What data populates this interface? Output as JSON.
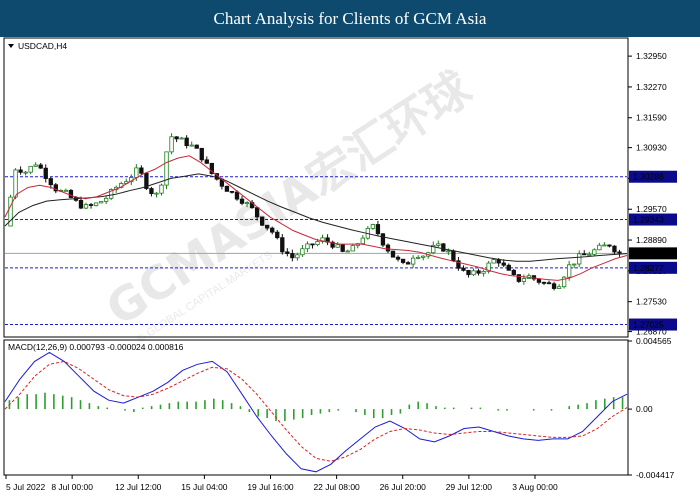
{
  "header": {
    "title": "Chart Analysis for Clients of GCM Asia"
  },
  "main_panel": {
    "symbol_label": "USDCAD,H4"
  },
  "macd_panel": {
    "label": "MACD(12,26,9) 0.000793 -0.000024 0.000816"
  },
  "watermark": {
    "text": "GCMASIA宏汇环球",
    "sub": "© GLOBAL CAPITAL MARKETS"
  },
  "colors": {
    "header_bg": "#0d4a6e",
    "support_resistance": "#1a1adb",
    "ma_fast": "#c8283c",
    "ma_slow": "#222222",
    "macd_line": "#1a1adb",
    "signal_line": "#e02020",
    "histogram": "#2e9e2e",
    "price_tag": "#0a0a8a",
    "current_tag": "#000000"
  },
  "chart_data": [
    {
      "type": "candlestick",
      "title": "USDCAD,H4",
      "price_axis_ticks": [
        "1.32950",
        "1.32270",
        "1.31590",
        "1.30930",
        "1.30250",
        "1.29570",
        "1.28890",
        "1.28210",
        "1.27530",
        "1.26870"
      ],
      "time_axis_ticks": [
        "5 Jul 2022",
        "8 Jul 00:00",
        "12 Jul 12:00",
        "15 Jul 04:00",
        "19 Jul 16:00",
        "22 Jul 08:00",
        "26 Jul 20:00",
        "29 Jul 12:00",
        "3 Aug 00:00"
      ],
      "ylim": [
        1.2675,
        1.3335
      ],
      "levels": [
        {
          "label": "1.30288",
          "value": 1.30288,
          "style": "dashed"
        },
        {
          "label": "1.29343",
          "value": 1.29343,
          "style": "dashed"
        },
        {
          "label": "1.28277",
          "value": 1.28277,
          "style": "dashed"
        },
        {
          "label": "1.27025",
          "value": 1.27025,
          "style": "dashed"
        }
      ],
      "current_price": {
        "label": "1.28596",
        "value": 1.28596
      },
      "close_path": [
        1.292,
        1.305,
        1.304,
        1.306,
        1.303,
        1.3,
        1.299,
        1.297,
        1.296,
        1.297,
        1.2985,
        1.301,
        1.3025,
        1.3045,
        1.3,
        1.2985,
        1.312,
        1.311,
        1.31,
        1.308,
        1.304,
        1.3015,
        1.2995,
        1.298,
        1.296,
        1.293,
        1.291,
        1.287,
        1.285,
        1.2865,
        1.288,
        1.289,
        1.288,
        1.286,
        1.287,
        1.29,
        1.292,
        1.288,
        1.285,
        1.283,
        1.286,
        1.2855,
        1.2875,
        1.287,
        1.284,
        1.281,
        1.2815,
        1.283,
        1.285,
        1.282,
        1.28,
        1.281,
        1.28,
        1.279,
        1.279,
        1.283,
        1.285,
        1.286,
        1.287,
        1.288,
        1.286
      ],
      "series": [
        {
          "name": "Fast MA",
          "values": [
            1.294,
            1.299,
            1.3005,
            1.301,
            1.3005,
            1.2995,
            1.2985,
            1.298,
            1.2985,
            1.2995,
            1.3005,
            1.302,
            1.3035,
            1.3045,
            1.306,
            1.307,
            1.3075,
            1.306,
            1.304,
            1.302,
            1.3,
            1.298,
            1.296,
            1.294,
            1.2925,
            1.291,
            1.29,
            1.289,
            1.2885,
            1.288,
            1.288,
            1.288,
            1.2875,
            1.287,
            1.2868,
            1.2866,
            1.2862,
            1.2855,
            1.2848,
            1.2842,
            1.2836,
            1.283,
            1.2822,
            1.2815,
            1.281,
            1.2808,
            1.2805,
            1.2802,
            1.28,
            1.2805,
            1.2815,
            1.2828,
            1.2838,
            1.2848,
            1.2855
          ]
        },
        {
          "name": "Slow MA",
          "values": [
            1.292,
            1.295,
            1.2965,
            1.2975,
            1.2978,
            1.298,
            1.2982,
            1.2985,
            1.299,
            1.2998,
            1.3005,
            1.3015,
            1.3025,
            1.303,
            1.3035,
            1.303,
            1.302,
            1.3005,
            1.299,
            1.2975,
            1.2962,
            1.295,
            1.2938,
            1.2928,
            1.292,
            1.2912,
            1.2905,
            1.2898,
            1.2892,
            1.2886,
            1.288,
            1.2874,
            1.2868,
            1.2862,
            1.2856,
            1.285,
            1.2845,
            1.2842,
            1.2842,
            1.2845,
            1.2848,
            1.285,
            1.2852,
            1.2855,
            1.2857,
            1.2859
          ]
        }
      ]
    },
    {
      "type": "macd",
      "title": "MACD(12,26,9) 0.000793 -0.000024 0.000816",
      "axis_ticks": [
        "0.004565",
        "0.00",
        "-0.004417"
      ],
      "ylim": [
        -0.004417,
        0.004565
      ],
      "series": [
        {
          "name": "MACD",
          "values": [
            0.0005,
            0.002,
            0.0032,
            0.0038,
            0.0032,
            0.0022,
            0.0012,
            0.0006,
            0.0004,
            0.0008,
            0.0012,
            0.0018,
            0.0026,
            0.003,
            0.0032,
            0.0025,
            0.001,
            -0.0005,
            -0.0018,
            -0.003,
            -0.004,
            -0.0042,
            -0.0037,
            -0.0028,
            -0.002,
            -0.0012,
            -0.0008,
            -0.0013,
            -0.002,
            -0.0022,
            -0.0018,
            -0.0013,
            -0.0012,
            -0.0015,
            -0.0018,
            -0.002,
            -0.0021,
            -0.002,
            -0.002,
            -0.0015,
            -0.0005,
            0.0005,
            0.001
          ]
        },
        {
          "name": "Signal",
          "values": [
            0.0,
            0.001,
            0.0022,
            0.003,
            0.0032,
            0.0027,
            0.002,
            0.0013,
            0.0009,
            0.0008,
            0.001,
            0.0014,
            0.0019,
            0.0024,
            0.0028,
            0.0027,
            0.002,
            0.001,
            -0.0002,
            -0.0014,
            -0.0025,
            -0.0033,
            -0.0035,
            -0.0032,
            -0.0027,
            -0.002,
            -0.0015,
            -0.0013,
            -0.0014,
            -0.0016,
            -0.0017,
            -0.0016,
            -0.0015,
            -0.0015,
            -0.0016,
            -0.0017,
            -0.0018,
            -0.0019,
            -0.0019,
            -0.0018,
            -0.0013,
            -0.0005,
            0.0001
          ]
        }
      ],
      "histogram": [
        0.0006,
        0.0008,
        0.001,
        0.001,
        0.0011,
        0.001,
        0.0009,
        0.0008,
        0.0006,
        0.0004,
        0.0002,
        0.0001,
        0.0,
        -0.0001,
        -0.0002,
        0.0001,
        0.0002,
        0.0003,
        0.0004,
        0.0005,
        0.0005,
        0.0005,
        0.0006,
        0.0007,
        0.0006,
        0.0004,
        0.0002,
        -0.0002,
        -0.0005,
        -0.0006,
        -0.0008,
        -0.0008,
        -0.0007,
        -0.0006,
        -0.0004,
        -0.0003,
        -0.0002,
        -0.0001,
        0.0,
        -0.0002,
        -0.0004,
        -0.0006,
        -0.0006,
        -0.0004,
        -0.0003,
        0.0003,
        0.0005,
        0.0004,
        0.0002,
        0.0001,
        0.0001,
        0.0,
        0.0001,
        0.0001,
        0.0,
        -0.0001,
        -0.0001,
        0.0,
        0.0,
        -0.0001,
        0.0,
        -0.0001,
        0.0,
        0.0002,
        0.0003,
        0.0004,
        0.0006,
        0.0007,
        0.0008,
        0.0008
      ]
    }
  ]
}
